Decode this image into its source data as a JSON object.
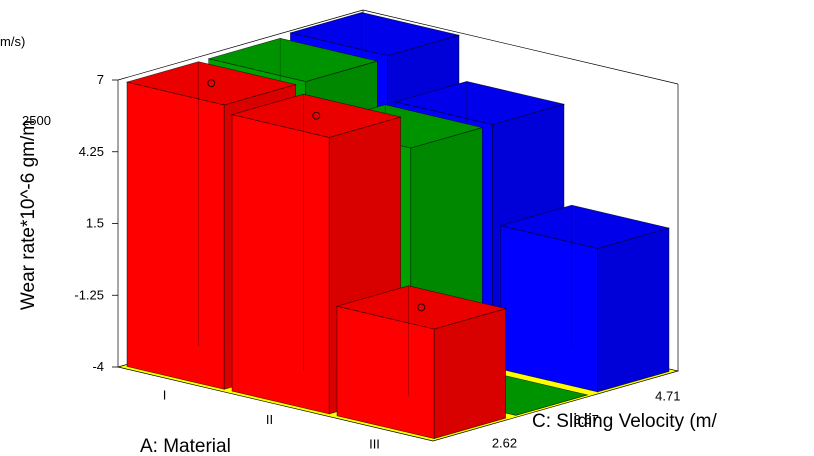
{
  "chart_data": {
    "type": "bar3d",
    "zlabel": "Wear rate*10^-6 gm/m",
    "xlabel": "A: Material",
    "ylabel": "C: Sliding Velocity (m/",
    "top_left_text": "m/s)",
    "overlap_text": "2500",
    "z_ticks": [
      "7",
      "4.25",
      "1.5",
      "-1.25",
      "-4"
    ],
    "zlim": [
      -4,
      7
    ],
    "x_categories": [
      "I",
      "II",
      "III"
    ],
    "y_categories": [
      "2.62",
      "3.67",
      "4.71"
    ],
    "series_colors": {
      "2.62": "#ff0000",
      "3.67": "#00a000",
      "4.71": "#0000ff"
    },
    "floor_color": "#ffff00",
    "bars": [
      {
        "x": "I",
        "y": "2.62",
        "value": 6.9
      },
      {
        "x": "I",
        "y": "3.67",
        "value": 6.9
      },
      {
        "x": "I",
        "y": "4.71",
        "value": 7.0
      },
      {
        "x": "II",
        "y": "2.62",
        "value": 6.6
      },
      {
        "x": "II",
        "y": "3.67",
        "value": 5.3
      },
      {
        "x": "II",
        "y": "4.71",
        "value": 5.3
      },
      {
        "x": "III",
        "y": "2.62",
        "value": 0.2
      },
      {
        "x": "III",
        "y": "3.67",
        "value": -4.0
      },
      {
        "x": "III",
        "y": "4.71",
        "value": 1.5
      }
    ]
  }
}
